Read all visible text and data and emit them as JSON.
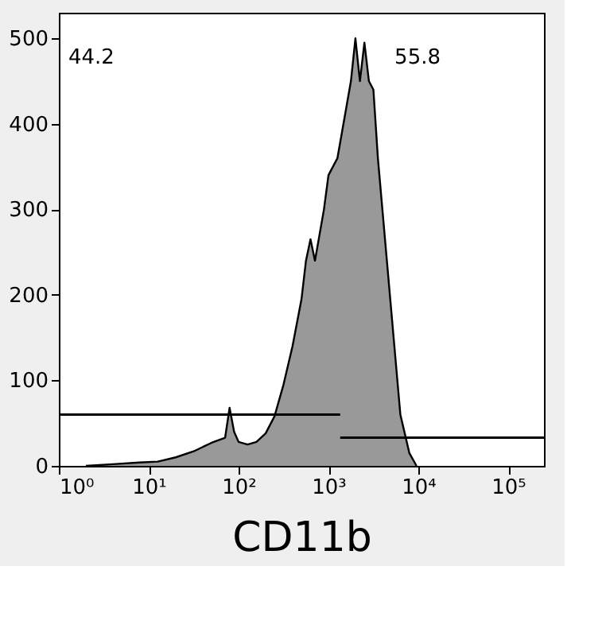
{
  "chart_data": {
    "type": "area",
    "xlabel": "CD11b",
    "log": "x",
    "grid": false,
    "xlim": [
      1,
      250000
    ],
    "ylim": [
      0,
      530
    ],
    "xticks": [
      {
        "value": 1,
        "label": "10⁰"
      },
      {
        "value": 10,
        "label": "10¹"
      },
      {
        "value": 100,
        "label": "10²"
      },
      {
        "value": 1000,
        "label": "10³"
      },
      {
        "value": 10000,
        "label": "10⁴"
      },
      {
        "value": 100000,
        "label": "10⁵"
      }
    ],
    "yticks": [
      0,
      100,
      200,
      300,
      400,
      500
    ],
    "series": [
      {
        "color": "#999999",
        "x": [
          2,
          4,
          7.9,
          12.6,
          20,
          31.6,
          50,
          70.8,
          79.4,
          89.1,
          100,
          126,
          158,
          200,
          251,
          316,
          398,
          501,
          562,
          631,
          708,
          794,
          891,
          1000,
          1259,
          1585,
          1778,
          1995,
          2239,
          2512,
          2818,
          3162,
          3548,
          3981,
          5012,
          6310,
          7943,
          9550
        ],
        "values": [
          0,
          2,
          4,
          5,
          10,
          17,
          27,
          33,
          68,
          40,
          28,
          25,
          28,
          38,
          58,
          95,
          140,
          195,
          240,
          265,
          240,
          270,
          300,
          340,
          360,
          420,
          450,
          500,
          450,
          495,
          450,
          440,
          360,
          300,
          180,
          60,
          15,
          0
        ]
      },
      {
        "type": "line",
        "color": "#000000",
        "x": [
          1,
          1350
        ],
        "values": [
          60,
          60
        ]
      },
      {
        "type": "line",
        "color": "#000000",
        "x": [
          1350,
          250000
        ],
        "values": [
          33,
          33
        ]
      }
    ],
    "annotations": [
      "44.2",
      "55.8"
    ]
  }
}
